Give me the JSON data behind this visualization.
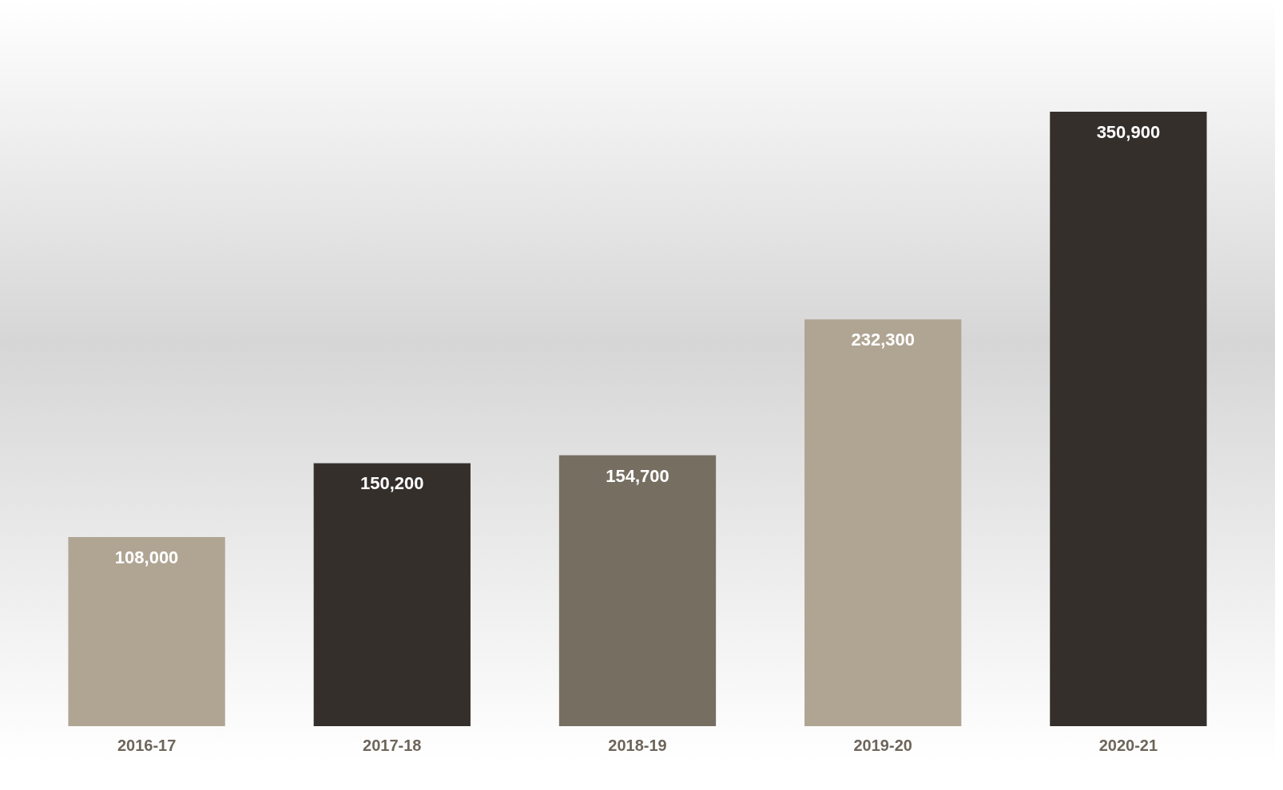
{
  "chart_data": {
    "type": "bar",
    "categories": [
      "2016-17",
      "2017-18",
      "2018-19",
      "2019-20",
      "2020-21"
    ],
    "values": [
      108000,
      150200,
      154700,
      232300,
      350900
    ],
    "value_labels": [
      "108,000",
      "150,200",
      "154,700",
      "232,300",
      "350,900"
    ],
    "colors": [
      "#b0a593",
      "#342f2b",
      "#776e62",
      "#b0a593",
      "#342f2b"
    ]
  }
}
